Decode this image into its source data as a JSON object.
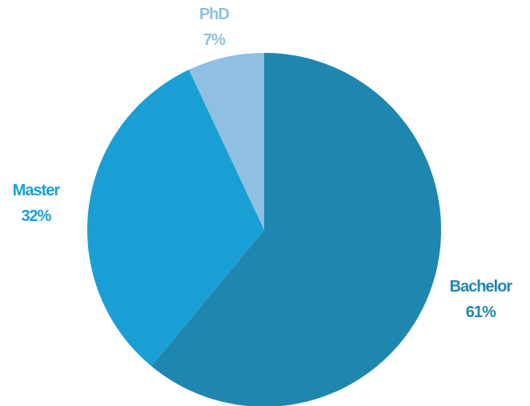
{
  "chart_data": {
    "type": "pie",
    "categories": [
      "Bachelor",
      "Master",
      "PhD"
    ],
    "values": [
      61,
      32,
      7
    ],
    "value_labels": [
      "61%",
      "32%",
      "7%"
    ],
    "colors": [
      "#1f86b0",
      "#1a9fd4",
      "#8fc0e2"
    ]
  }
}
